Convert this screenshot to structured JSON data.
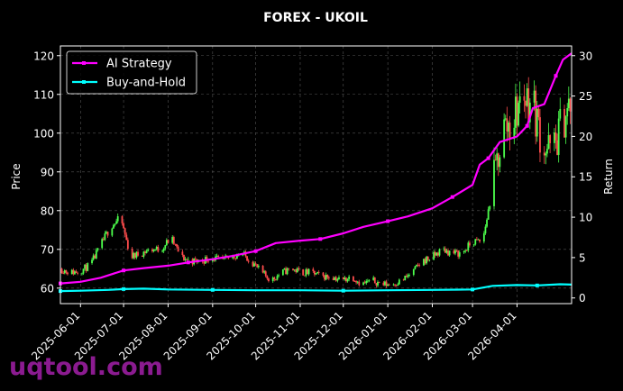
{
  "watermark": "uqtool.com",
  "colors": {
    "background": "#000000",
    "up": "#4cff4c",
    "down": "#ff4c4c",
    "strategy": "#ff00ff",
    "buyhold": "#00ffff",
    "grid": "#555555"
  },
  "chart_data": {
    "type": "line",
    "title": "FOREX - UKOIL",
    "ylabel": "Price",
    "ylabel_right": "Return",
    "ylim": [
      56,
      122.5
    ],
    "ylim_right": [
      -0.7,
      31.2
    ],
    "yticks": [
      60,
      70,
      80,
      90,
      100,
      110,
      120
    ],
    "yticks_right": [
      0,
      5,
      10,
      15,
      20,
      25,
      30
    ],
    "xlim": [
      "2025-05-18",
      "2026-05-09"
    ],
    "xticks": [
      "2025-06-01",
      "2025-07-01",
      "2025-08-01",
      "2025-09-01",
      "2025-10-01",
      "2025-11-01",
      "2025-12-01",
      "2026-01-01",
      "2026-02-01",
      "2026-03-01",
      "2026-04-01"
    ],
    "grid": true,
    "legend_position": "top-left",
    "price_series": {
      "name": "UKOIL",
      "style": "candlestick",
      "dates": [
        "2025-05-18",
        "2025-05-25",
        "2025-06-01",
        "2025-06-08",
        "2025-06-15",
        "2025-06-22",
        "2025-06-29",
        "2025-07-06",
        "2025-07-13",
        "2025-07-20",
        "2025-07-27",
        "2025-08-03",
        "2025-08-10",
        "2025-08-17",
        "2025-08-24",
        "2025-08-31",
        "2025-09-07",
        "2025-09-14",
        "2025-09-21",
        "2025-09-28",
        "2025-10-05",
        "2025-10-12",
        "2025-10-19",
        "2025-10-26",
        "2025-11-02",
        "2025-11-09",
        "2025-11-16",
        "2025-11-23",
        "2025-11-30",
        "2025-12-07",
        "2025-12-14",
        "2025-12-21",
        "2025-12-28",
        "2026-01-04",
        "2026-01-11",
        "2026-01-18",
        "2026-01-25",
        "2026-02-01",
        "2026-02-08",
        "2026-02-15",
        "2026-02-22",
        "2026-03-01",
        "2026-03-08",
        "2026-03-15",
        "2026-03-22",
        "2026-03-29",
        "2026-04-05",
        "2026-04-12",
        "2026-04-19",
        "2026-04-26",
        "2026-05-03",
        "2026-05-09"
      ],
      "values": [
        65,
        64,
        64.5,
        66,
        71,
        76,
        78,
        68,
        69,
        70,
        70,
        73,
        68,
        67,
        67,
        68,
        67,
        68,
        69,
        67,
        64,
        62,
        64,
        65,
        64,
        64,
        63,
        63,
        62,
        63,
        61,
        62,
        61,
        61,
        62,
        64,
        67,
        68,
        70,
        69,
        69,
        72,
        72,
        86,
        101,
        103,
        110,
        108,
        97,
        95,
        104,
        107
      ]
    },
    "series": [
      {
        "name": "AI Strategy",
        "axis": "right",
        "dates": [
          "2025-05-18",
          "2025-06-01",
          "2025-06-15",
          "2025-07-01",
          "2025-07-15",
          "2025-08-01",
          "2025-08-15",
          "2025-09-01",
          "2025-09-15",
          "2025-10-01",
          "2025-10-15",
          "2025-11-01",
          "2025-11-15",
          "2025-12-01",
          "2025-12-15",
          "2026-01-01",
          "2026-01-15",
          "2026-02-01",
          "2026-02-15",
          "2026-03-01",
          "2026-03-06",
          "2026-03-12",
          "2026-03-20",
          "2026-04-01",
          "2026-04-08",
          "2026-04-12",
          "2026-04-20",
          "2026-04-28",
          "2026-05-03",
          "2026-05-09"
        ],
        "values": [
          1.8,
          2.0,
          2.5,
          3.4,
          3.7,
          4.0,
          4.4,
          4.8,
          5.2,
          5.8,
          6.8,
          7.1,
          7.3,
          8.0,
          8.8,
          9.5,
          10.1,
          11.1,
          12.5,
          14.0,
          16.5,
          17.3,
          19.3,
          20.0,
          21.3,
          23.5,
          24.0,
          27.5,
          29.5,
          30.3
        ]
      },
      {
        "name": "Buy-and-Hold",
        "axis": "right",
        "dates": [
          "2025-05-18",
          "2025-06-01",
          "2025-06-20",
          "2025-07-01",
          "2025-07-15",
          "2025-08-01",
          "2025-09-01",
          "2025-10-01",
          "2025-11-01",
          "2025-12-01",
          "2026-01-01",
          "2026-02-01",
          "2026-03-01",
          "2026-03-15",
          "2026-04-01",
          "2026-04-15",
          "2026-05-01",
          "2026-05-09"
        ],
        "values": [
          0.85,
          0.9,
          1.0,
          1.1,
          1.15,
          1.05,
          1.0,
          0.95,
          0.95,
          0.9,
          0.95,
          1.0,
          1.05,
          1.5,
          1.6,
          1.55,
          1.7,
          1.65
        ]
      }
    ]
  }
}
